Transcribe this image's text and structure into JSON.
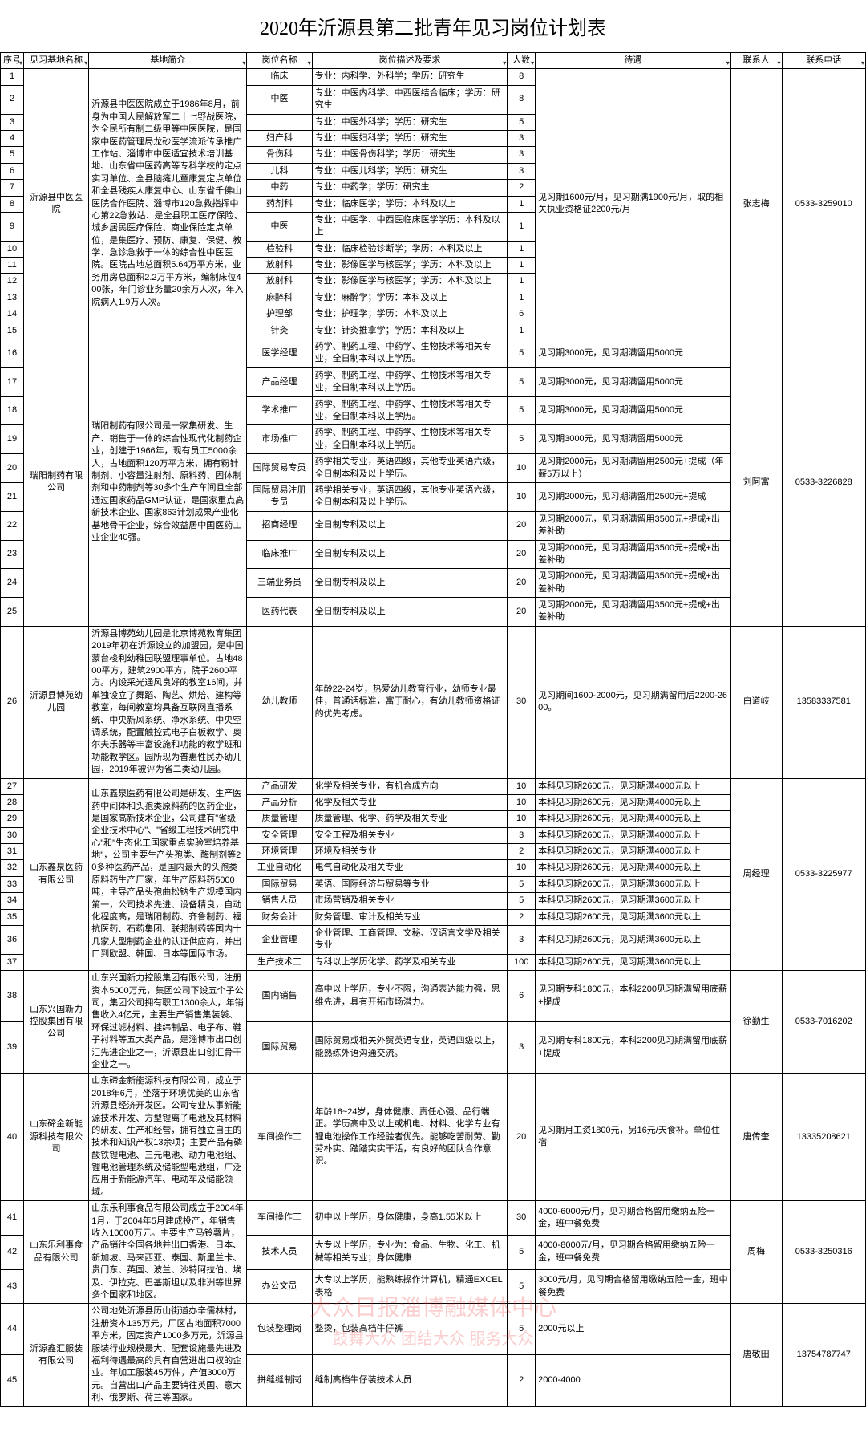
{
  "title": "2020年沂源县第二批青年见习岗位计划表",
  "headers": [
    "序号",
    "见习基地名称",
    "基地简介",
    "岗位名称",
    "岗位描述及要求",
    "人数",
    "待遇",
    "联系人",
    "联系电话"
  ],
  "watermark": {
    "line1": "大众日报淄博融媒体中心",
    "line2": "鼓舞大众 团结大众 服务大众"
  },
  "bases": [
    {
      "name": "沂源县中医医院",
      "intro": "沂源县中医医院成立于1986年8月，前身为中国人民解放军二十七野战医院，为全民所有制二级甲等中医医院，是国家中医药管理局龙砂医学流派传承推广工作站、淄博市中医适宜技术培训基地、山东省中医药高等专科学校的定点实习单位、全县脑瘫儿童康复定点单位和全县残疾人康复中心、山东省千佛山医院合作医院、淄博市120急救指挥中心第22急救站、是全县职工医疗保险、城乡居民医疗保险、商业保险定点单位，是集医疗、预防、康复、保健、教学、急诊急救于一体的综合性中医医院。医院占地总面积5.64万平方米，业务用房总面积2.2万平方米，编制床位400张，年门诊业务量20余万人次，年入院病人1.9万人次。",
      "contact": "张志梅",
      "phone": "0533-3259010",
      "pay": "见习期1600元/月，见习期满1900元/月，取的相关执业资格证2200元/月",
      "positions": [
        {
          "seq": "1",
          "name": "临床",
          "desc": "专业：内科学、外科学；学历：研究生",
          "num": "8"
        },
        {
          "seq": "2",
          "name": "中医",
          "desc": "专业：中医内科学、中西医结合临床；学历：研究生",
          "num": "8"
        },
        {
          "seq": "3",
          "name": "",
          "desc": "专业：中医外科学；学历：研究生",
          "num": "5"
        },
        {
          "seq": "4",
          "name": "妇产科",
          "desc": "专业：中医妇科学；学历：研究生",
          "num": "3"
        },
        {
          "seq": "5",
          "name": "骨伤科",
          "desc": "专业：中医骨伤科学；学历：研究生",
          "num": "3"
        },
        {
          "seq": "6",
          "name": "儿科",
          "desc": "专业：中医儿科学；学历：研究生",
          "num": "3"
        },
        {
          "seq": "7",
          "name": "中药",
          "desc": "专业：中药学；学历：研究生",
          "num": "2"
        },
        {
          "seq": "8",
          "name": "药剂科",
          "desc": "专业：临床医学；学历：本科及以上",
          "num": "1"
        },
        {
          "seq": "9",
          "name": "中医",
          "desc": "专业：中医学、中西医临床医学学历：本科及以上",
          "num": "1"
        },
        {
          "seq": "10",
          "name": "检验科",
          "desc": "专业：临床检验诊断学；学历：本科及以上",
          "num": "1"
        },
        {
          "seq": "11",
          "name": "放射科",
          "desc": "专业：影像医学与核医学；学历：本科及以上",
          "num": "1"
        },
        {
          "seq": "12",
          "name": "放射科",
          "desc": "专业：影像医学与核医学；学历：本科及以上",
          "num": "1"
        },
        {
          "seq": "13",
          "name": "麻醉科",
          "desc": "专业：麻醉学；学历：本科及以上",
          "num": "1"
        },
        {
          "seq": "14",
          "name": "护理部",
          "desc": "专业：护理学；学历：本科及以上",
          "num": "6"
        },
        {
          "seq": "15",
          "name": "针灸",
          "desc": "专业：针灸推拿学；学历：本科及以上",
          "num": "1"
        }
      ]
    },
    {
      "name": "瑞阳制药有限公司",
      "intro": "瑞阳制药有限公司是一家集研发、生产、销售于一体的综合性现代化制药企业，创建于1966年，现有员工5000余人，占地面积120万平方米，拥有粉针制剂、小容量注射剂、原料药、固体制剂和中药制剂等30多个生产车间且全部通过国家药品GMP认证，是国家重点高新技术企业、国家863计划成果产业化基地骨干企业，综合效益居中国医药工业企业40强。",
      "contact": "刘阿富",
      "phone": "0533-3226828",
      "positions": [
        {
          "seq": "16",
          "name": "医学经理",
          "desc": "药学、制药工程、中药学、生物技术等相关专业，全日制本科以上学历。",
          "num": "5",
          "pay": "见习期3000元，见习期满留用5000元"
        },
        {
          "seq": "17",
          "name": "产品经理",
          "desc": "药学、制药工程、中药学、生物技术等相关专业，全日制本科以上学历。",
          "num": "5",
          "pay": "见习期3000元，见习期满留用5000元"
        },
        {
          "seq": "18",
          "name": "学术推广",
          "desc": "药学、制药工程、中药学、生物技术等相关专业，全日制本科以上学历。",
          "num": "5",
          "pay": "见习期3000元，见习期满留用5000元"
        },
        {
          "seq": "19",
          "name": "市场推广",
          "desc": "药学、制药工程、中药学、生物技术等相关专业，全日制本科以上学历。",
          "num": "5",
          "pay": "见习期3000元，见习期满留用5000元"
        },
        {
          "seq": "20",
          "name": "国际贸易专员",
          "desc": "药学相关专业，英语四级，其他专业英语六级，全日制本科及以上学历。",
          "num": "10",
          "pay": "见习期2000元，见习期满留用2500元+提成（年薪5万以上）"
        },
        {
          "seq": "21",
          "name": "国际贸易注册专员",
          "desc": "药学相关专业，英语四级，其他专业英语六级，全日制本科及以上学历。",
          "num": "10",
          "pay": "见习期2000元，见习期满留用2500元+提成"
        },
        {
          "seq": "22",
          "name": "招商经理",
          "desc": "全日制专科及以上",
          "num": "20",
          "pay": "见习期2000元，见习期满留用3500元+提成+出差补助"
        },
        {
          "seq": "23",
          "name": "临床推广",
          "desc": "全日制专科及以上",
          "num": "20",
          "pay": "见习期2000元，见习期满留用3500元+提成+出差补助"
        },
        {
          "seq": "24",
          "name": "三端业务员",
          "desc": "全日制专科及以上",
          "num": "20",
          "pay": "见习期2000元，见习期满留用3500元+提成+出差补助"
        },
        {
          "seq": "25",
          "name": "医药代表",
          "desc": "全日制专科及以上",
          "num": "20",
          "pay": "见习期2000元，见习期满留用3500元+提成+出差补助"
        }
      ]
    },
    {
      "name": "沂源县博苑幼儿园",
      "intro": "沂源县博苑幼儿园是北京博苑教育集团2019年初在沂源设立的加盟园，是中国蒙台梭利幼稚园联盟理事单位。占地4800平方，建筑2900平方，院子2600平方。内设采光通风良好的教室16间，并单独设立了舞蹈、陶艺、烘焙、建构等教室，每间教室均具备互联网直播系统、中央新风系统、净水系统、中央空调系统，配置触控式电子白板教学、奥尔夫乐器等丰富设施和功能的教学班和功能教学区。园所现为普惠性民办幼儿园，2019年被评为省二类幼儿园。",
      "contact": "白道岐",
      "phone": "13583337581",
      "positions": [
        {
          "seq": "26",
          "name": "幼儿教师",
          "desc": "年龄22-24岁，热爱幼儿教育行业，幼师专业最佳，普通话标准，富于耐心，有幼儿教师资格证的优先考虑。",
          "num": "30",
          "pay": "见习期间1600-2000元，见习期满留用后2200-2600。"
        }
      ]
    },
    {
      "name": "山东鑫泉医药有限公司",
      "intro": "山东鑫泉医药有限公司是研发、生产医药中间体和头孢类原料药的医药企业，是国家高新技术企业，公司建有\"省级企业技术中心\"、\"省级工程技术研究中心\"和\"生态化工国家重点实验室培养基地\"，公司主要生产头孢类、酶制剂等20多种医药产品，是国内最大的头孢类原料药生产厂家，年生产原料药5000吨，主导产品头孢曲松钠生产规模国内第一，公司技术先进、设备精良，自动化程度高，是瑞阳制药、齐鲁制药、福抗医药、石药集团、联邦制药等国内十几家大型制药企业的认证供应商，并出口到欧盟、韩国、日本等国际市场。",
      "contact": "周经理",
      "phone": "0533-3225977",
      "positions": [
        {
          "seq": "27",
          "name": "产品研发",
          "desc": "化学及相关专业，有机合成方向",
          "num": "10",
          "pay": "本科见习期2600元，见习期满4000元以上"
        },
        {
          "seq": "28",
          "name": "产品分析",
          "desc": "化学及相关专业",
          "num": "10",
          "pay": "本科见习期2600元，见习期满4000元以上"
        },
        {
          "seq": "29",
          "name": "质量管理",
          "desc": "质量管理、化学、药学及相关专业",
          "num": "10",
          "pay": "本科见习期2600元，见习期满4000元以上"
        },
        {
          "seq": "30",
          "name": "安全管理",
          "desc": "安全工程及相关专业",
          "num": "3",
          "pay": "本科见习期2600元，见习期满4000元以上"
        },
        {
          "seq": "31",
          "name": "环境管理",
          "desc": "环境及相关专业",
          "num": "2",
          "pay": "本科见习期2600元，见习期满4000元以上"
        },
        {
          "seq": "32",
          "name": "工业自动化",
          "desc": "电气自动化及相关专业",
          "num": "10",
          "pay": "本科见习期2600元，见习期满4000元以上"
        },
        {
          "seq": "33",
          "name": "国际贸易",
          "desc": "英语、国际经济与贸易等专业",
          "num": "5",
          "pay": "本科见习期2600元，见习期满3600元以上"
        },
        {
          "seq": "34",
          "name": "销售人员",
          "desc": "市场营销及相关专业",
          "num": "5",
          "pay": "本科见习期2600元，见习期满3600元以上"
        },
        {
          "seq": "35",
          "name": "财务会计",
          "desc": "财务管理、审计及相关专业",
          "num": "2",
          "pay": "本科见习期2600元，见习期满3600元以上"
        },
        {
          "seq": "36",
          "name": "企业管理",
          "desc": "企业管理、工商管理、文秘、汉语言文学及相关专业",
          "num": "3",
          "pay": "本科见习期2600元，见习期满3600元以上"
        },
        {
          "seq": "37",
          "name": "生产技术工",
          "desc": "专科以上学历化学、药学及相关专业",
          "num": "100",
          "pay": "本科见习期2600元，见习期满3600元以上"
        }
      ]
    },
    {
      "name": "山东兴国新力控股集团有限公司",
      "intro": "山东兴国新力控股集团有限公司，注册资本5000万元，集团公司下设五个子公司，集团公司拥有职工1300余人，年销售收入4亿元，主要生产销售集装袋、环保过滤材料、挂纬制品、电子布、鞋子衬料等五大类产品，是淄博市出口创汇先进企业之一，沂源县出口创汇骨干企业之一。",
      "contact": "徐勤生",
      "phone": "0533-7016202",
      "positions": [
        {
          "seq": "38",
          "name": "国内销售",
          "desc": "高中以上学历，专业不限，沟通表达能力强，思维先进，具有开拓市场潜力。",
          "num": "6",
          "pay": "见习期专科1800元，本科2200见习期满留用底薪+提成"
        },
        {
          "seq": "39",
          "name": "国际贸易",
          "desc": "国际贸易或相关外贸英语专业，英语四级以上，能熟练外语沟通交流。",
          "num": "3",
          "pay": "见习期专科1800元，本科2200见习期满留用底薪+提成"
        }
      ]
    },
    {
      "name": "山东碲金新能源科技有限公司",
      "intro": "山东碲金新能源科技有限公司，成立于2018年6月，坐落于环境优美的山东省沂源县经济开发区。公司专业从事新能源技术开发、方型锂离子电池及其材料的研发、生产和经营，拥有独立自主的技术和知识产权13余项；主要产品有磷酸铁锂电池、三元电池、动力电池组、锂电池管理系统及储能型电池组，广泛应用于新能源汽车、电动车及储能领域。",
      "contact": "唐传奎",
      "phone": "13335208621",
      "positions": [
        {
          "seq": "40",
          "name": "车间操作工",
          "desc": "年龄16~24岁，身体健康、责任心强、品行端正。学历高中及以上或机电、材料、化学专业有锂电池操作工作经验者优先。能够吃苦耐劳、勤劳朴实、踏踏实实干活，有良好的团队合作意识。",
          "num": "20",
          "pay": "见习期月工资1800元，另16元/天食补。单位住宿"
        }
      ]
    },
    {
      "name": "山东乐利事食品有限公司",
      "intro": "山东乐利事食品有限公司成立于2004年1月，于2004年5月建成投产，年销售收入10000万元。主要生产马铃薯片，产品销往全国各地并出口香港、日本、新加坡、马来西亚、泰国、斯里兰卡、贵门东、英国、波兰、沙特阿拉伯、埃及、伊拉克、巴基斯坦以及非洲等世界多个国家和地区。",
      "contact": "周梅",
      "phone": "0533-3250316",
      "positions": [
        {
          "seq": "41",
          "name": "车间操作工",
          "desc": "初中以上学历，身体健康，身高1.55米以上",
          "num": "30",
          "pay": "4000-6000元/月，见习期合格留用缴纳五险一金，班中餐免费"
        },
        {
          "seq": "42",
          "name": "技术人员",
          "desc": "大专以上学历，专业为：食品、生物、化工、机械等相关专业；身体健康",
          "num": "5",
          "pay": "4000-8000元/月，见习期合格留用缴纳五险一金，班中餐免费"
        },
        {
          "seq": "43",
          "name": "办公文员",
          "desc": "大专以上学历，能熟练操作计算机，精通EXCEL表格",
          "num": "5",
          "pay": "3000元/月，见习期合格留用缴纳五险一金，班中餐免费"
        }
      ]
    },
    {
      "name": "沂源鑫汇服装有限公司",
      "intro": "公司地处沂源县历山街道办辛儒林村，注册资本135万元，厂区占地面积7000平方米，固定资产1000多万元，沂源县服装行业规模最大、配套设施最先进及福利待遇最高的具有自营进出口权的企业。年加工服装45万件，产值3000万元。自营出口产品主要销往英国、意大利、俄罗斯、荷兰等国家。",
      "contact": "唐敬田",
      "phone": "13754787747",
      "positions": [
        {
          "seq": "44",
          "name": "包装整理岗",
          "desc": "整烫，包装高档牛仔裤",
          "num": "5",
          "pay": "2000元以上"
        },
        {
          "seq": "45",
          "name": "拼缝缝制岗",
          "desc": "缝制高档牛仔装技术人员",
          "num": "2",
          "pay": "2000-4000"
        }
      ]
    }
  ]
}
